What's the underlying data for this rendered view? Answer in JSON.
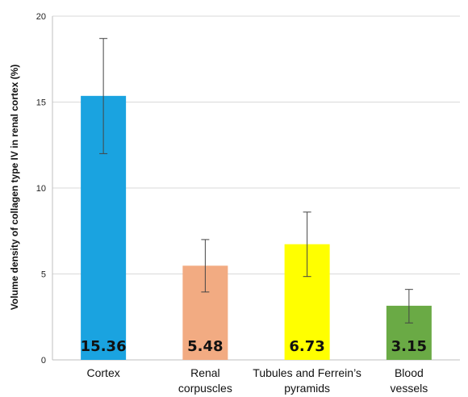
{
  "chart_data": {
    "type": "bar",
    "ylabel": "Volume density of collagen type IV in renal cortex (%)",
    "xlabel": "",
    "ylim": [
      0,
      20
    ],
    "yticks": [
      0,
      5,
      10,
      15,
      20
    ],
    "grid": true,
    "legend": "none",
    "categories": [
      [
        "Cortex"
      ],
      [
        "Renal",
        "corpuscles"
      ],
      [
        "Tubules and Ferrein’s",
        "pyramids"
      ],
      [
        "Blood",
        "vessels"
      ]
    ],
    "values": [
      15.36,
      5.48,
      6.73,
      3.15
    ],
    "value_labels": [
      "15.36",
      "5.48",
      "6.73",
      "3.15"
    ],
    "error_bars": [
      [
        12.0,
        18.7
      ],
      [
        3.95,
        7.0
      ],
      [
        4.85,
        8.6
      ],
      [
        2.15,
        4.1
      ]
    ],
    "colors": [
      "#1aa3e0",
      "#f2ab82",
      "#ffff00",
      "#6aaa45"
    ]
  }
}
